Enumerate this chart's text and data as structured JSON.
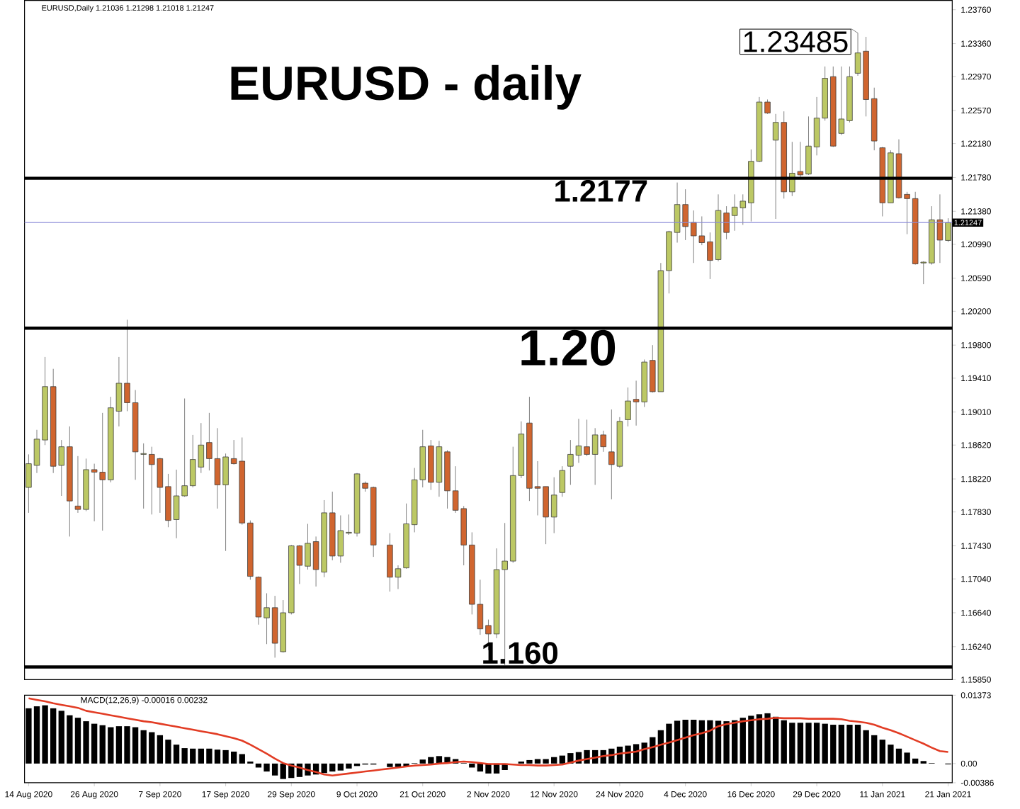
{
  "chart_data": [
    {
      "type": "candlestick",
      "title": "EURUSD - daily",
      "annotations": [
        "EURUSD,Daily 1.21036 1.21298 1.21018 1.21247",
        "1.23485"
      ],
      "categories": [
        null,
        null,
        null,
        null,
        null,
        null,
        null,
        null,
        null,
        null,
        null,
        null,
        null,
        null,
        null,
        null,
        null,
        null,
        null,
        null,
        null,
        null,
        null,
        null,
        null,
        null,
        null,
        null,
        null,
        null,
        null,
        null,
        null,
        null,
        null,
        null,
        null,
        null,
        null,
        null,
        null,
        null,
        null,
        null,
        null,
        null,
        null,
        null,
        null,
        null,
        null,
        null,
        null,
        null,
        null,
        null,
        null,
        null,
        null,
        null,
        null,
        null,
        null,
        null,
        null,
        null,
        null,
        null,
        null,
        null,
        null,
        null,
        null,
        null,
        null,
        null,
        null,
        null,
        null,
        null,
        null,
        null,
        null,
        null,
        null,
        null,
        null,
        null,
        null,
        null,
        null,
        null,
        null,
        null,
        null,
        null,
        null,
        null,
        null,
        null,
        null,
        null,
        null,
        null,
        null,
        null,
        null,
        null,
        null,
        null,
        null,
        null,
        null
      ],
      "ohlc": [
        [
          1.1812,
          1.1851,
          1.1782,
          1.184
        ],
        [
          1.1838,
          1.188,
          1.1829,
          1.1869
        ],
        [
          1.1868,
          1.1966,
          1.1862,
          1.1931
        ],
        [
          1.1931,
          1.1952,
          1.1829,
          1.1837
        ],
        [
          1.1838,
          1.1868,
          1.1802,
          1.186
        ],
        [
          1.186,
          1.1884,
          1.1754,
          1.1796
        ],
        [
          1.179,
          1.1849,
          1.1782,
          1.1786
        ],
        [
          1.1786,
          1.1846,
          1.1784,
          1.1833
        ],
        [
          1.1833,
          1.184,
          1.1772,
          1.183
        ],
        [
          1.183,
          1.19,
          1.1761,
          1.1821
        ],
        [
          1.1821,
          1.1919,
          1.1818,
          1.1906
        ],
        [
          1.1902,
          1.1966,
          1.1884,
          1.1935
        ],
        [
          1.1935,
          1.201,
          1.1902,
          1.1912
        ],
        [
          1.1912,
          1.1927,
          1.1821,
          1.1854
        ],
        [
          1.1851,
          1.1864,
          1.1787,
          1.1852
        ],
        [
          1.1851,
          1.186,
          1.178,
          1.1839
        ],
        [
          1.1846,
          1.1847,
          1.1782,
          1.1812
        ],
        [
          1.1813,
          1.1828,
          1.1765,
          1.1773
        ],
        [
          1.1774,
          1.1833,
          1.1752,
          1.1802
        ],
        [
          1.1802,
          1.1917,
          1.1801,
          1.1814
        ],
        [
          1.1814,
          1.1874,
          1.1812,
          1.1845
        ],
        [
          1.1836,
          1.1888,
          1.1829,
          1.1862
        ],
        [
          1.1865,
          1.19,
          1.1832,
          1.1846
        ],
        [
          1.1846,
          1.1882,
          1.1787,
          1.1815
        ],
        [
          1.1815,
          1.1852,
          1.1737,
          1.1848
        ],
        [
          1.1846,
          1.1868,
          1.1839,
          1.184
        ],
        [
          1.1843,
          1.1871,
          1.1768,
          1.177
        ],
        [
          1.177,
          1.1773,
          1.1703,
          1.1707
        ],
        [
          1.1706,
          1.1707,
          1.165,
          1.1659
        ],
        [
          1.1658,
          1.1687,
          1.1627,
          1.167
        ],
        [
          1.167,
          1.1684,
          1.1611,
          1.1628
        ],
        [
          1.1618,
          1.1679,
          1.1617,
          1.1664
        ],
        [
          1.1664,
          1.1744,
          1.1662,
          1.1743
        ],
        [
          1.1743,
          1.1744,
          1.1698,
          1.172
        ],
        [
          1.1719,
          1.1769,
          1.1715,
          1.1746
        ],
        [
          1.1748,
          1.1754,
          1.1695,
          1.1715
        ],
        [
          1.1712,
          1.1797,
          1.1706,
          1.1782
        ],
        [
          1.1782,
          1.1807,
          1.1726,
          1.1731
        ],
        [
          1.1731,
          1.1779,
          1.1723,
          1.1761
        ],
        [
          1.1758,
          1.178,
          1.1756,
          1.1759
        ],
        [
          1.1758,
          1.1829,
          1.1754,
          1.1828
        ],
        [
          1.1817,
          1.1819,
          1.1807,
          1.1811
        ],
        [
          1.1812,
          1.1813,
          1.173,
          1.1744
        ],
        null,
        [
          1.1744,
          1.1758,
          1.1689,
          1.1706
        ],
        [
          1.1706,
          1.172,
          1.1692,
          1.1716
        ],
        [
          1.1717,
          1.1793,
          1.1716,
          1.1769
        ],
        [
          1.1768,
          1.1835,
          1.1759,
          1.1821
        ],
        [
          1.1821,
          1.188,
          1.1812,
          1.186
        ],
        [
          1.1861,
          1.1868,
          1.1809,
          1.1818
        ],
        [
          1.1818,
          1.1867,
          1.1801,
          1.186
        ],
        [
          1.1854,
          1.1856,
          1.1787,
          1.1808
        ],
        [
          1.1808,
          1.1837,
          1.1782,
          1.1785
        ],
        [
          1.1787,
          1.179,
          1.172,
          1.1744
        ],
        [
          1.1744,
          1.1759,
          1.1662,
          1.1674
        ],
        [
          1.1674,
          1.1703,
          1.1638,
          1.1645
        ],
        [
          1.1649,
          1.1656,
          1.162,
          1.1639
        ],
        [
          1.1639,
          1.174,
          1.1634,
          1.1715
        ],
        [
          1.1715,
          1.177,
          1.1602,
          1.1725
        ],
        [
          1.1725,
          1.186,
          1.1723,
          1.1826
        ],
        [
          1.1826,
          1.189,
          1.1823,
          1.1875
        ],
        [
          1.1888,
          1.1919,
          1.1796,
          1.1811
        ],
        [
          1.1813,
          1.1843,
          1.1779,
          1.1811
        ],
        [
          1.1813,
          1.1813,
          1.1745,
          1.1777
        ],
        [
          1.1777,
          1.1824,
          1.1758,
          1.1803
        ],
        [
          1.1806,
          1.1837,
          1.1801,
          1.1832
        ],
        [
          1.1837,
          1.1868,
          1.1815,
          1.1851
        ],
        [
          1.185,
          1.1893,
          1.1841,
          1.1861
        ],
        [
          1.186,
          1.1892,
          1.1849,
          1.1851
        ],
        [
          1.1851,
          1.1882,
          1.1815,
          1.1874
        ],
        [
          1.1874,
          1.1879,
          1.1854,
          1.186
        ],
        [
          1.1854,
          1.1904,
          1.1798,
          1.1839
        ],
        [
          1.1837,
          1.1895,
          1.1835,
          1.189
        ],
        [
          1.1892,
          1.193,
          1.1884,
          1.1914
        ],
        [
          1.1916,
          1.1938,
          1.1885,
          1.1913
        ],
        [
          1.1913,
          1.1963,
          1.1907,
          1.196
        ],
        [
          1.1962,
          1.198,
          1.1924,
          1.1925
        ],
        [
          1.1925,
          1.2077,
          1.1925,
          1.2068
        ],
        [
          1.2068,
          1.2115,
          1.2041,
          1.2114
        ],
        [
          1.2113,
          1.2172,
          1.2101,
          1.2146
        ],
        [
          1.2146,
          1.2164,
          1.2104,
          1.212
        ],
        [
          1.2125,
          1.2139,
          1.2077,
          1.2109
        ],
        [
          1.2109,
          1.2132,
          1.2098,
          1.2101
        ],
        [
          1.2102,
          1.2113,
          1.2058,
          1.208
        ],
        [
          1.2081,
          1.2158,
          1.2079,
          1.2139
        ],
        [
          1.2136,
          1.2144,
          1.2105,
          1.2113
        ],
        [
          1.2133,
          1.2158,
          1.2115,
          1.2143
        ],
        [
          1.2142,
          1.2158,
          1.2122,
          1.215
        ],
        [
          1.2148,
          1.2211,
          1.2126,
          1.2197
        ],
        [
          1.2197,
          1.2273,
          1.2196,
          1.2267
        ],
        [
          1.2267,
          1.227,
          1.2253,
          1.2254
        ],
        [
          1.2222,
          1.2253,
          1.2129,
          1.2243
        ],
        [
          1.2243,
          1.2256,
          1.2153,
          1.2161
        ],
        [
          1.2161,
          1.222,
          1.2156,
          1.2183
        ],
        [
          1.2185,
          1.222,
          1.2178,
          1.2181
        ],
        [
          1.2182,
          1.225,
          1.2181,
          1.2215
        ],
        [
          1.2214,
          1.2273,
          1.2204,
          1.2248
        ],
        [
          1.2248,
          1.2309,
          1.2245,
          1.2295
        ],
        [
          1.2297,
          1.2309,
          1.2214,
          1.2215
        ],
        [
          1.223,
          1.2309,
          1.2228,
          1.2247
        ],
        [
          1.2245,
          1.2309,
          1.2243,
          1.2297
        ],
        [
          1.2301,
          1.23485,
          1.2298,
          1.2325
        ],
        [
          1.2327,
          1.2344,
          1.225,
          1.227
        ],
        [
          1.2271,
          1.2284,
          1.221,
          1.2221
        ],
        [
          1.2213,
          1.2214,
          1.2132,
          1.2148
        ],
        [
          1.2148,
          1.221,
          1.2148,
          1.2207
        ],
        [
          1.2206,
          1.2223,
          1.2153,
          1.2154
        ],
        [
          1.2158,
          1.2161,
          1.2111,
          1.2153
        ],
        [
          1.2153,
          1.2161,
          1.2075,
          1.2076
        ],
        [
          1.2077,
          1.2079,
          1.2052,
          1.2078
        ],
        [
          1.2077,
          1.2144,
          1.2075,
          1.2128
        ],
        [
          1.2128,
          1.2158,
          1.2077,
          1.2104
        ],
        [
          1.21036,
          1.21298,
          1.21018,
          1.21247
        ]
      ],
      "colors": [
        "#bcc864",
        "#bcc864",
        "#bcc864",
        "#d0652f",
        "#bcc864",
        "#d0652f",
        "#d0652f",
        "#bcc864",
        "#d0652f",
        "#d0652f",
        "#bcc864",
        "#bcc864",
        "#d0652f",
        "#d0652f",
        "#bcc864",
        "#d0652f",
        "#d0652f",
        "#d0652f",
        "#bcc864",
        "#bcc864",
        "#bcc864",
        "#bcc864",
        "#d0652f",
        "#d0652f",
        "#bcc864",
        "#d0652f",
        "#d0652f",
        "#d0652f",
        "#d0652f",
        "#bcc864",
        "#d0652f",
        "#bcc864",
        "#bcc864",
        "#d0652f",
        "#bcc864",
        "#d0652f",
        "#bcc864",
        "#d0652f",
        "#bcc864",
        "#bcc864",
        "#bcc864",
        "#d0652f",
        "#d0652f",
        null,
        "#d0652f",
        "#bcc864",
        "#bcc864",
        "#bcc864",
        "#bcc864",
        "#d0652f",
        "#bcc864",
        "#d0652f",
        "#d0652f",
        "#d0652f",
        "#d0652f",
        "#d0652f",
        "#d0652f",
        "#bcc864",
        "#bcc864",
        "#bcc864",
        "#bcc864",
        "#d0652f",
        "#d0652f",
        "#d0652f",
        "#bcc864",
        "#bcc864",
        "#bcc864",
        "#bcc864",
        "#d0652f",
        "#bcc864",
        "#d0652f",
        "#d0652f",
        "#bcc864",
        "#bcc864",
        "#d0652f",
        "#bcc864",
        "#d0652f",
        "#bcc864",
        "#bcc864",
        "#bcc864",
        "#d0652f",
        "#d0652f",
        "#d0652f",
        "#d0652f",
        "#bcc864",
        "#d0652f",
        "#bcc864",
        "#bcc864",
        "#bcc864",
        "#bcc864",
        "#d0652f",
        "#bcc864",
        "#d0652f",
        "#bcc864",
        "#d0652f",
        "#bcc864",
        "#bcc864",
        "#bcc864",
        "#d0652f",
        "#bcc864",
        "#bcc864",
        "#bcc864",
        "#d0652f",
        "#d0652f",
        "#d0652f",
        "#bcc864",
        "#d0652f",
        "#d0652f",
        "#d0652f",
        "#bcc864",
        "#bcc864",
        "#d0652f",
        "#bcc864"
      ],
      "ylim": [
        1.1585,
        1.2387
      ],
      "yticks": [
        {
          "value": 1.2376,
          "label": "1.23760"
        },
        {
          "value": 1.2336,
          "label": "1.23360"
        },
        {
          "value": 1.2297,
          "label": "1.22970"
        },
        {
          "value": 1.2257,
          "label": "1.22570"
        },
        {
          "value": 1.2218,
          "label": "1.22180"
        },
        {
          "value": 1.2178,
          "label": "1.21780"
        },
        {
          "value": 1.2138,
          "label": "1.21380"
        },
        {
          "value": 1.2099,
          "label": "1.20990"
        },
        {
          "value": 1.2059,
          "label": "1.20590"
        },
        {
          "value": 1.202,
          "label": "1.20200"
        },
        {
          "value": 1.198,
          "label": "1.19800"
        },
        {
          "value": 1.1941,
          "label": "1.19410"
        },
        {
          "value": 1.1901,
          "label": "1.19010"
        },
        {
          "value": 1.1862,
          "label": "1.18620"
        },
        {
          "value": 1.1822,
          "label": "1.18220"
        },
        {
          "value": 1.1783,
          "label": "1.17830"
        },
        {
          "value": 1.1743,
          "label": "1.17430"
        },
        {
          "value": 1.1704,
          "label": "1.17040"
        },
        {
          "value": 1.1664,
          "label": "1.16640"
        },
        {
          "value": 1.1624,
          "label": "1.16240"
        },
        {
          "value": 1.1585,
          "label": "1.15850"
        }
      ],
      "ref_lines": [
        {
          "axis": "y",
          "value": 1.2177,
          "label": "1.2177",
          "color": "#000000"
        },
        {
          "axis": "y",
          "value": 1.2,
          "label": "1.20",
          "color": "#000000"
        },
        {
          "axis": "y",
          "value": 1.16,
          "label": "1.160",
          "color": "#000000"
        },
        {
          "axis": "y",
          "value": 1.21247,
          "label": "1.21247",
          "color": "#8c8cd8"
        }
      ],
      "tick_labels": "y"
    },
    {
      "type": "bar",
      "title": "MACD(12,26,9) -0.00016 0.00232",
      "categories": [
        "14 Aug 2020",
        null,
        null,
        null,
        null,
        null,
        null,
        null,
        "26 Aug 2020",
        null,
        null,
        null,
        null,
        null,
        null,
        null,
        "7 Sep 2020",
        null,
        null,
        null,
        null,
        null,
        null,
        null,
        "17 Sep 2020",
        null,
        null,
        null,
        null,
        null,
        null,
        null,
        "29 Sep 2020",
        null,
        null,
        null,
        null,
        null,
        null,
        null,
        "9 Oct 2020",
        null,
        null,
        null,
        null,
        null,
        null,
        null,
        "21 Oct 2020",
        null,
        null,
        null,
        null,
        null,
        null,
        null,
        "2 Nov 2020",
        null,
        null,
        null,
        null,
        null,
        null,
        null,
        "12 Nov 2020",
        null,
        null,
        null,
        null,
        null,
        null,
        null,
        "24 Nov 2020",
        null,
        null,
        null,
        null,
        null,
        null,
        null,
        "4 Dec 2020",
        null,
        null,
        null,
        null,
        null,
        null,
        null,
        "16 Dec 2020",
        null,
        null,
        null,
        null,
        null,
        null,
        null,
        "29 Dec 2020",
        null,
        null,
        null,
        null,
        null,
        null,
        null,
        "11 Jan 2021",
        null,
        null,
        null,
        null,
        null,
        null,
        null,
        "21 Jan 2021"
      ],
      "series": [
        {
          "color": "#000000",
          "values": [
            0.0111,
            0.0115,
            0.0117,
            0.0111,
            0.0106,
            0.0097,
            0.0092,
            0.0085,
            0.008,
            0.0077,
            0.0073,
            0.0075,
            0.0075,
            0.0073,
            0.0067,
            0.0063,
            0.0057,
            0.0048,
            0.0038,
            0.0031,
            0.003,
            0.003,
            0.003,
            0.0028,
            0.0027,
            0.0024,
            0.0019,
            0.0004,
            -0.0008,
            -0.0016,
            -0.0024,
            -0.0031,
            -0.0029,
            -0.0027,
            -0.0024,
            -0.0022,
            -0.0019,
            -0.0016,
            -0.0014,
            -0.001,
            -0.0005,
            -0.0002,
            -0.0002,
            null,
            -0.0007,
            -0.0007,
            -0.0006,
            0.0001,
            0.0008,
            0.0013,
            0.0015,
            0.0013,
            0.0009,
            0.0001,
            -0.0008,
            -0.0016,
            -0.002,
            -0.002,
            -0.0013,
            null,
            0.0004,
            0.0007,
            0.0009,
            0.0009,
            0.0013,
            0.0016,
            0.0021,
            0.0023,
            0.0027,
            0.0027,
            0.0027,
            0.003,
            0.0034,
            0.0036,
            0.0039,
            0.0042,
            0.0053,
            0.0067,
            0.008,
            0.0086,
            0.0088,
            0.0088,
            0.0087,
            0.0087,
            0.0086,
            0.0085,
            0.0087,
            0.0092,
            0.0096,
            0.0099,
            0.0101,
            0.0094,
            0.0087,
            0.0082,
            0.0082,
            0.0082,
            0.0082,
            0.008,
            0.0078,
            0.0078,
            0.0078,
            0.0078,
            0.0067,
            0.0057,
            0.0048,
            0.0038,
            0.003,
            0.0022,
            0.001,
            0.0005,
            0.0001,
            0.0,
            -0.00016
          ]
        },
        {
          "type": "line",
          "color": "#e23c24",
          "values": [
            0.0131,
            0.0128,
            0.0125,
            0.0121,
            0.0118,
            0.0115,
            0.0112,
            0.0106,
            0.0103,
            0.01,
            0.0097,
            0.0094,
            0.0091,
            0.0088,
            0.0085,
            0.0083,
            0.008,
            0.0077,
            0.0074,
            0.0071,
            0.0068,
            0.0065,
            0.0062,
            0.0059,
            0.0055,
            0.0051,
            0.0046,
            0.0038,
            0.0029,
            0.002,
            0.001,
            0.0001,
            -0.0004,
            -0.0008,
            -0.0013,
            -0.0017,
            -0.0022,
            -0.0024,
            -0.0022,
            -0.002,
            -0.0018,
            -0.0016,
            -0.0014,
            -0.0012,
            -0.001,
            -0.0008,
            -0.0006,
            -0.0004,
            -0.0003,
            -0.0002,
            0.0,
            0.0001,
            0.0003,
            0.0004,
            0.0003,
            0.0001,
            -0.0001,
            -0.0001,
            -0.0001,
            -0.0002,
            -0.0003,
            -0.0003,
            -0.0004,
            -0.0004,
            -0.0003,
            -0.0002,
            0.0002,
            0.0006,
            0.0009,
            0.0012,
            0.0015,
            0.0017,
            0.002,
            0.0022,
            0.0024,
            0.0029,
            0.0033,
            0.0038,
            0.0042,
            0.0047,
            0.0052,
            0.0057,
            0.0061,
            0.0066,
            0.0075,
            0.0079,
            0.0082,
            0.0085,
            0.0087,
            0.0089,
            0.009,
            0.0092,
            0.0091,
            0.0091,
            0.0091,
            0.009,
            0.009,
            0.009,
            0.009,
            0.0089,
            0.0086,
            0.0084,
            0.0082,
            0.0078,
            0.0072,
            0.0067,
            0.0061,
            0.0054,
            0.0047,
            0.004,
            0.0032,
            0.0025,
            0.00232
          ]
        }
      ],
      "ylim": [
        -0.00386,
        0.01373
      ],
      "yticks": [
        {
          "value": 0.01373,
          "label": "0.01373"
        },
        {
          "value": 0,
          "label": "0.00"
        },
        {
          "value": -0.00386,
          "label": "-0.00386"
        }
      ]
    }
  ]
}
